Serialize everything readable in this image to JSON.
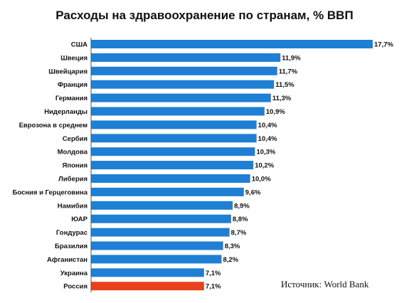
{
  "chart_data": {
    "type": "bar",
    "orientation": "horizontal",
    "title": "Расходы на здравоохранение по странам, % ВВП",
    "categories": [
      "США",
      "Швеция",
      "Швейцария",
      "Франция",
      "Германия",
      "Нидерланды",
      "Еврозона в среднем",
      "Сербия",
      "Молдова",
      "Япония",
      "Либерия",
      "Босния и Герцеговина",
      "Намибия",
      "ЮАР",
      "Гондурас",
      "Бразилия",
      "Афганистан",
      "Украина",
      "Россия"
    ],
    "values": [
      17.7,
      11.9,
      11.7,
      11.5,
      11.3,
      10.9,
      10.4,
      10.4,
      10.3,
      10.2,
      10.0,
      9.6,
      8.9,
      8.8,
      8.7,
      8.3,
      8.2,
      7.1,
      7.1
    ],
    "value_labels": [
      "17,7%",
      "11,9%",
      "11,7%",
      "11,5%",
      "11,3%",
      "10,9%",
      "10,4%",
      "10,4%",
      "10,3%",
      "10,2%",
      "10,0%",
      "9,6%",
      "8,9%",
      "8,8%",
      "8,7%",
      "8,3%",
      "8,2%",
      "7,1%",
      "7,1%"
    ],
    "xlim": [
      0,
      17.7
    ],
    "grid": false,
    "legend": "none",
    "colors": {
      "default": "#1f7fd4",
      "highlight": "#e8421c"
    },
    "highlight_category": "Россия",
    "source": "Источник: World Bank"
  }
}
